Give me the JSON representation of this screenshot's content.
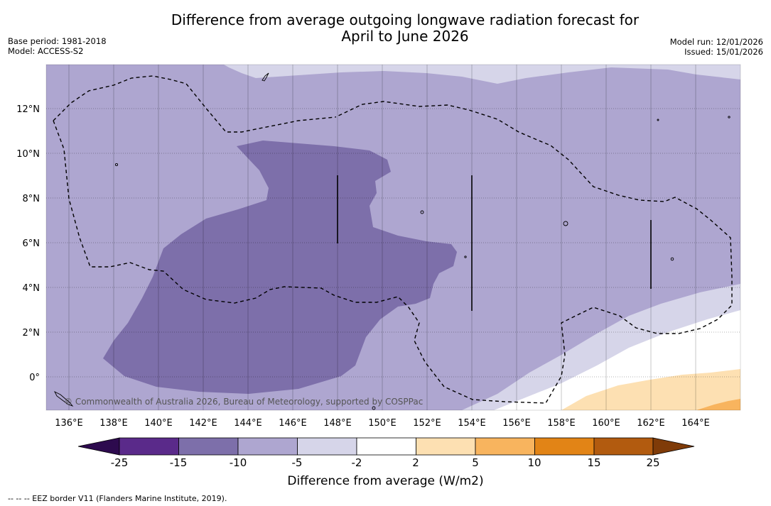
{
  "header": {
    "title_line1": "Difference from average outgoing longwave radiation forecast for",
    "title_line2": "April to June 2026",
    "base_period": "Base period: 1981-2018",
    "model": "Model: ACCESS-S2",
    "model_run": "Model run: 12/01/2026",
    "issued": "Issued: 15/01/2026"
  },
  "map": {
    "lon_range": [
      135,
      166
    ],
    "lat_range": [
      -1.5,
      14
    ],
    "lon_ticks": [
      "136°E",
      "138°E",
      "140°E",
      "142°E",
      "144°E",
      "146°E",
      "148°E",
      "150°E",
      "152°E",
      "154°E",
      "156°E",
      "158°E",
      "160°E",
      "162°E",
      "164°E"
    ],
    "lon_tick_values": [
      136,
      138,
      140,
      142,
      144,
      146,
      148,
      150,
      152,
      154,
      156,
      158,
      160,
      162,
      164
    ],
    "lat_ticks": [
      "12°N",
      "10°N",
      "8°N",
      "6°N",
      "4°N",
      "2°N",
      "0°"
    ],
    "lat_tick_values": [
      12,
      10,
      8,
      6,
      4,
      2,
      0
    ],
    "copyright": "© Commonwealth of Australia 2026, Bureau of Meteorology, supported by COSPPac"
  },
  "colorbar": {
    "labels": [
      "-25",
      "-15",
      "-10",
      "-5",
      "-2",
      "2",
      "5",
      "10",
      "15",
      "25"
    ],
    "colors": [
      "#5a2a8a",
      "#7d6faa",
      "#aea6d0",
      "#d6d5e9",
      "#ffffff",
      "#fde0b2",
      "#f8b45e",
      "#e28416",
      "#b25b0f"
    ],
    "under_color": "#2d0a4e",
    "over_color": "#7f3b08",
    "title": "Difference from average (W/m2)"
  },
  "footnote": "--  --  -- EEZ border V11 (Flanders Marine Institute, 2019)."
}
